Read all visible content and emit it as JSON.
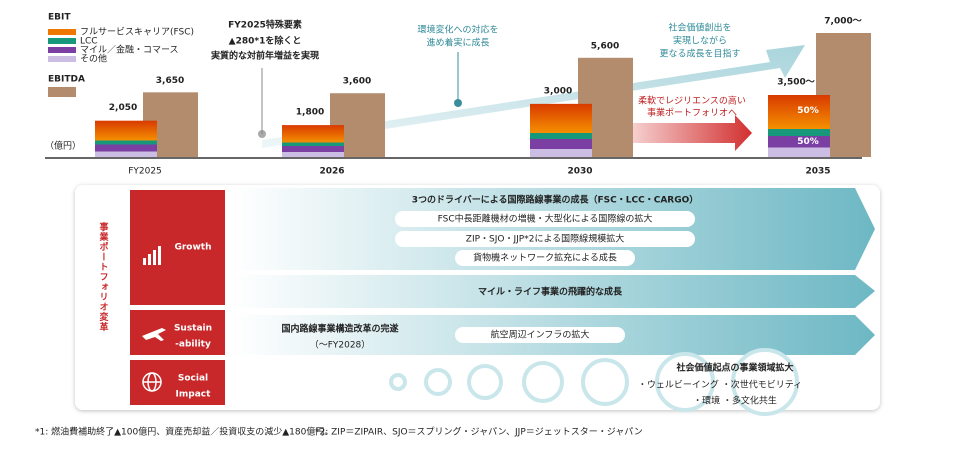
{
  "chart_data": {
    "type": "bar",
    "unit": "（億円）",
    "categories": [
      "FY2025",
      "2026",
      "2030",
      "2035"
    ],
    "series": [
      {
        "name": "EBIT",
        "values": [
          2050,
          1800,
          3000,
          3500
        ],
        "value_labels": [
          "2,050",
          "1,800",
          "3,000",
          "3,500～"
        ]
      },
      {
        "name": "EBITDA",
        "color": "#b38b6d",
        "values": [
          3650,
          3600,
          5600,
          7000
        ],
        "value_labels": [
          "3,650",
          "3,600",
          "5,600",
          "7,000～"
        ]
      }
    ],
    "segments": [
      {
        "name": "フルサービスキャリア(FSC)",
        "color": "#f07800"
      },
      {
        "name": "LCC",
        "color": "#17987a"
      },
      {
        "name": "マイル／金融・コマース",
        "color": "#7b3fa3"
      },
      {
        "name": "その他",
        "color": "#cbbde3"
      }
    ],
    "shares_2035": [
      "50%",
      "50%"
    ],
    "annotations": {
      "fy2025": [
        "FY2025特殊要素",
        "▲280*1を除くと",
        "実質的な対前年増益を実現"
      ],
      "growth": [
        "環境変化への対応を",
        "進め着実に成長"
      ],
      "value": [
        "社会価値創出を",
        "実現しながら",
        "更なる成長を目指す"
      ],
      "portfolio": [
        "柔軟でレジリエンスの高い",
        "事業ポートフォリオへ"
      ]
    }
  },
  "transformation": {
    "title": "事業ポートフォリオ変革",
    "pillars": [
      [
        "Growth"
      ],
      [
        "Sustain",
        "-ability"
      ],
      [
        "Social",
        "Impact"
      ]
    ],
    "rows": [
      {
        "title": "3つのドライバーによる国際路線事業の成長（FSC・LCC・CARGO）",
        "items": [
          "FSC中長距離機材の増機・大型化による国際線の拡大",
          "ZIP・SJO・JJP*2による国際線規模拡大",
          "貨物機ネットワーク拡充による成長"
        ]
      },
      {
        "title": "マイル・ライフ事業の飛躍的な成長"
      },
      {
        "title": "国内路線事業構造改革の完遂",
        "note": "（～FY2028）",
        "items": [
          "航空周辺インフラの拡大"
        ]
      },
      {
        "title": "社会価値起点の事業領域拡大",
        "items": [
          "・ウェルビーイング ・次世代モビリティ",
          "・環境 ・多文化共生"
        ]
      }
    ]
  },
  "footnotes": [
    "*1: 燃油費補助終了▲100億円、資産売却益／投資収支の減少▲180億円。",
    "*2: ZIP＝ZIPAIR、SJO＝スプリング・ジャパン、JJP＝ジェットスター・ジャパン"
  ]
}
